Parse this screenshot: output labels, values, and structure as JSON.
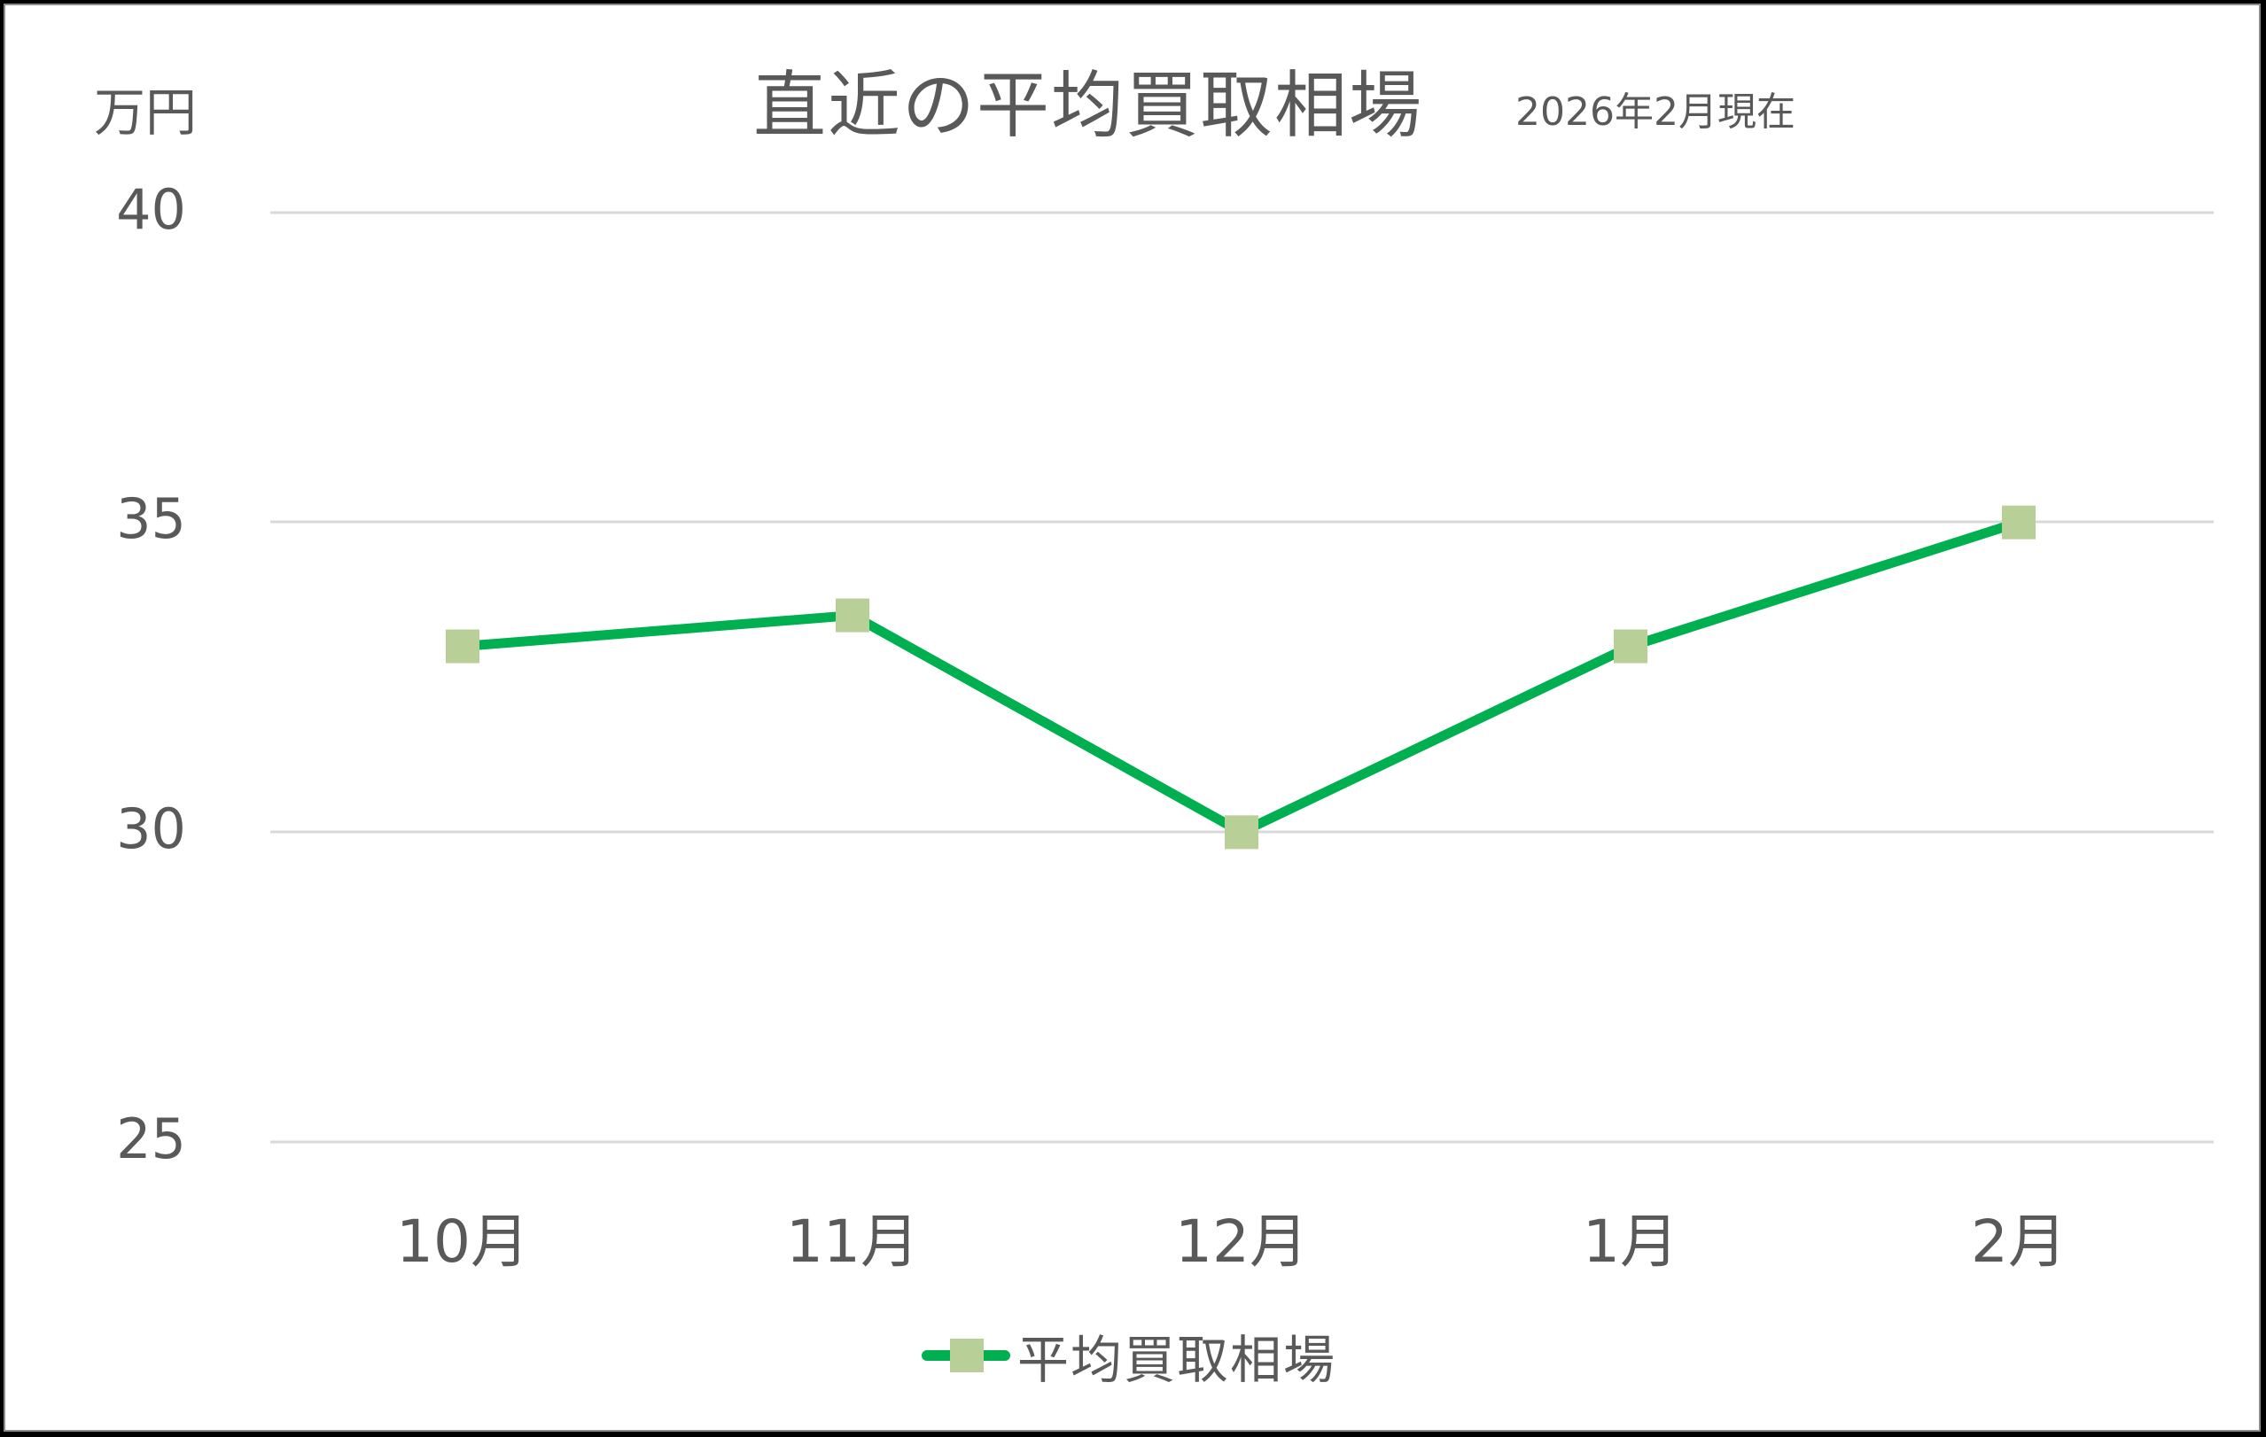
{
  "chart_data": {
    "type": "line",
    "title": "直近の平均買取相場",
    "subtitle": "2026年2月現在",
    "xlabel": "",
    "ylabel": "万円",
    "categories": [
      "10月",
      "11月",
      "12月",
      "1月",
      "2月"
    ],
    "series": [
      {
        "name": "平均買取相場",
        "values": [
          33,
          33.5,
          30,
          33,
          35
        ],
        "line_color": "#00B050",
        "marker_color": "#B8CF97",
        "marker": "square"
      }
    ],
    "ylim": [
      25,
      40
    ],
    "yticks": [
      "40",
      "35",
      "30",
      "25"
    ],
    "grid": true,
    "legend_position": "bottom"
  },
  "colors": {
    "line": "#00B050",
    "marker": "#B8CF97",
    "gridline": "#D9D9D9",
    "text": "#595959"
  }
}
